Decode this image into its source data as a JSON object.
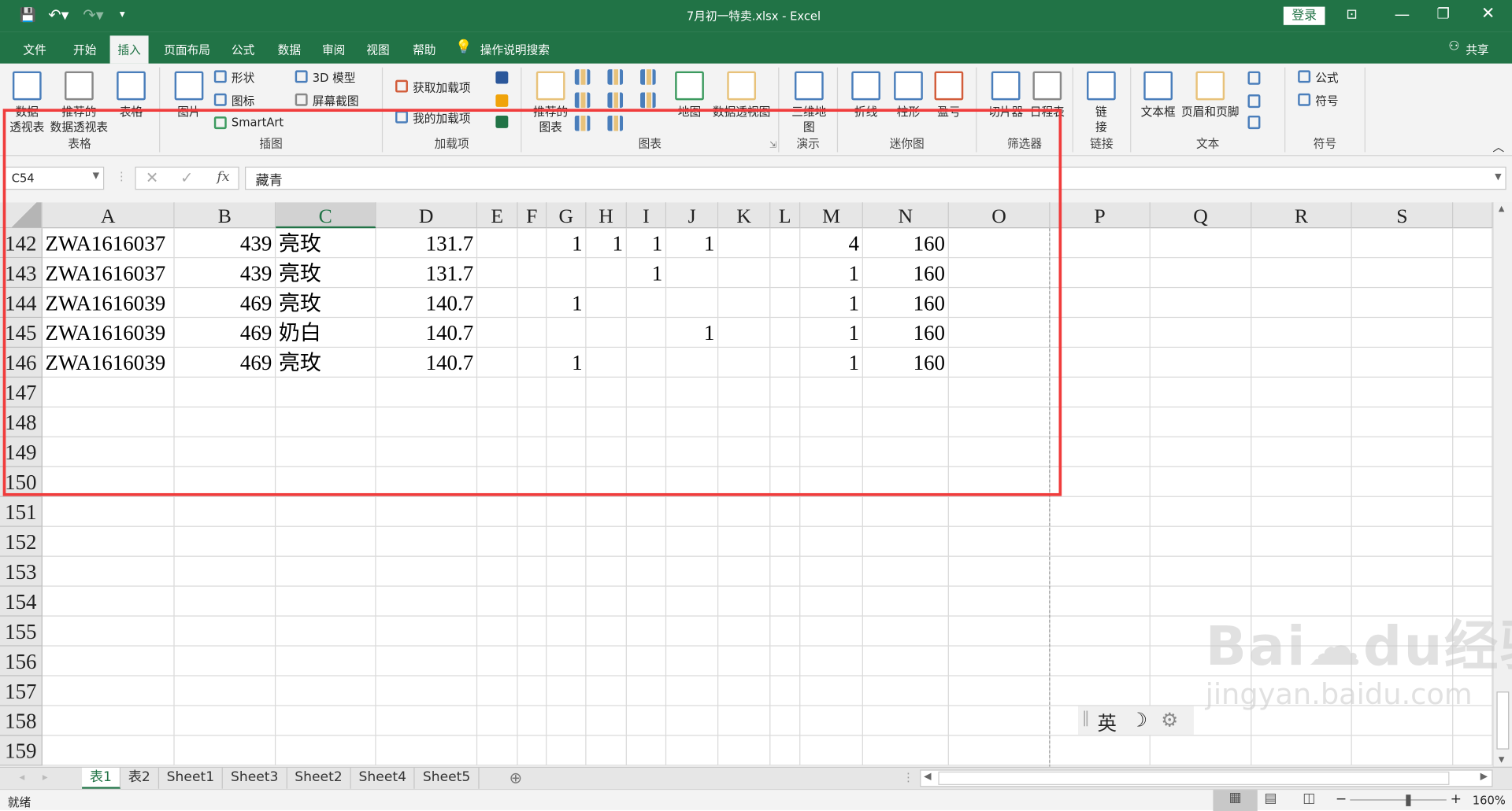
{
  "title": "7月初一特卖.xlsx  -  Excel",
  "login": "登录",
  "share": "共享",
  "ribbon_tabs": [
    "文件",
    "开始",
    "插入",
    "页面布局",
    "公式",
    "数据",
    "审阅",
    "视图",
    "帮助"
  ],
  "active_tab": "插入",
  "tell_me": "操作说明搜索",
  "ribbon": {
    "groups": [
      "表格",
      "插图",
      "加载项",
      "图表",
      "演示",
      "迷你图",
      "筛选器",
      "链接",
      "文本",
      "符号"
    ],
    "pivot_table": "数据\n透视表",
    "recommended_pivot": "推荐的\n数据透视表",
    "table": "表格",
    "pictures": "图片",
    "shapes": "形状",
    "icons": "图标",
    "smartart": "SmartArt",
    "model3d": "3D 模型",
    "screenshot": "屏幕截图",
    "get_addins": "获取加载项",
    "my_addins": "我的加载项",
    "recommended_charts": "推荐的\n图表",
    "maps": "地图",
    "pivot_chart": "数据透视图",
    "map3d": "三维地\n图",
    "spark_line": "折线",
    "spark_column": "柱形",
    "spark_winloss": "盈亏",
    "slicer": "切片器",
    "timeline": "日程表",
    "link": "链\n接",
    "textbox": "文本框",
    "header_footer": "页眉和页脚",
    "equation": "公式",
    "symbol": "符号"
  },
  "formula_bar": {
    "name_box": "C54",
    "fx": "fx",
    "content": "藏青"
  },
  "columns": [
    "A",
    "B",
    "C",
    "D",
    "E",
    "F",
    "G",
    "H",
    "I",
    "J",
    "K",
    "L",
    "M",
    "N",
    "O",
    "P",
    "Q",
    "R",
    "S"
  ],
  "selected_column": "C",
  "rows": [
    {
      "n": "142",
      "A": "ZWA1616037",
      "B": "439",
      "C": "亮玫",
      "D": "131.7",
      "G": "1",
      "H": "1",
      "I": "1",
      "J": "1",
      "M": "4",
      "N": "160"
    },
    {
      "n": "143",
      "A": "ZWA1616037",
      "B": "439",
      "C": "亮玫",
      "D": "131.7",
      "I": "1",
      "M": "1",
      "N": "160"
    },
    {
      "n": "144",
      "A": "ZWA1616039",
      "B": "469",
      "C": "亮玫",
      "D": "140.7",
      "G": "1",
      "M": "1",
      "N": "160"
    },
    {
      "n": "145",
      "A": "ZWA1616039",
      "B": "469",
      "C": "奶白",
      "D": "140.7",
      "J": "1",
      "M": "1",
      "N": "160"
    },
    {
      "n": "146",
      "A": "ZWA1616039",
      "B": "469",
      "C": "亮玫",
      "D": "140.7",
      "G": "1",
      "M": "1",
      "N": "160"
    },
    {
      "n": "147"
    },
    {
      "n": "148"
    },
    {
      "n": "149"
    },
    {
      "n": "150"
    },
    {
      "n": "151"
    },
    {
      "n": "152"
    },
    {
      "n": "153"
    },
    {
      "n": "154"
    },
    {
      "n": "155"
    },
    {
      "n": "156"
    },
    {
      "n": "157"
    },
    {
      "n": "158"
    },
    {
      "n": "159"
    }
  ],
  "sheets": [
    "表1",
    "表2",
    "Sheet1",
    "Sheet3",
    "Sheet2",
    "Sheet4",
    "Sheet5"
  ],
  "active_sheet": "表1",
  "status": {
    "ready": "就绪",
    "zoom": "160%",
    "zoom_level_percent": 160
  },
  "ime": {
    "lang": "英"
  },
  "watermark": {
    "brand": "Bai du 经验",
    "url": "jingyan.baidu.com"
  },
  "colors": {
    "excel_green": "#217346",
    "annotation_red": "#f03c3c"
  }
}
